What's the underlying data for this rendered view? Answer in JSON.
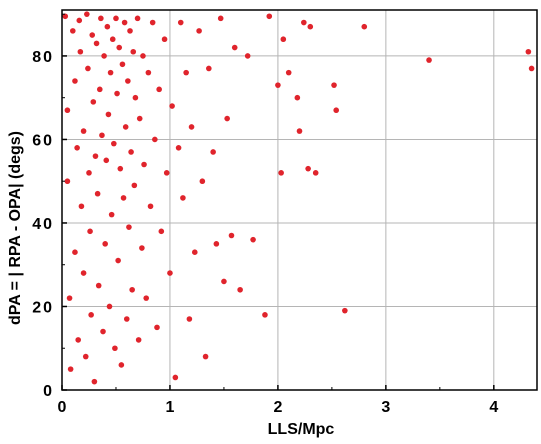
{
  "chart_data": {
    "type": "scatter",
    "title": "",
    "xlabel": "LLS/Mpc",
    "ylabel": "dPA = | RPA - OPA| (degs)",
    "xlim": [
      0,
      4.4
    ],
    "ylim": [
      0,
      91
    ],
    "xticks": [
      0,
      1,
      2,
      3,
      4
    ],
    "xtick_labels": [
      "0",
      "1",
      "2",
      "3",
      "4"
    ],
    "yticks": [
      0,
      20,
      40,
      60,
      80
    ],
    "ytick_labels": [
      "0",
      "20",
      "40",
      "60",
      "80"
    ],
    "grid": true,
    "legend": "none",
    "marker_color": "#e0242c",
    "series": [
      {
        "points": [
          [
            0.03,
            89.5
          ],
          [
            0.05,
            67
          ],
          [
            0.05,
            50
          ],
          [
            0.07,
            22
          ],
          [
            0.08,
            5
          ],
          [
            0.1,
            86
          ],
          [
            0.12,
            74
          ],
          [
            0.12,
            33
          ],
          [
            0.14,
            58
          ],
          [
            0.15,
            12
          ],
          [
            0.16,
            88.5
          ],
          [
            0.17,
            81
          ],
          [
            0.18,
            44
          ],
          [
            0.2,
            62
          ],
          [
            0.2,
            28
          ],
          [
            0.22,
            8
          ],
          [
            0.23,
            90
          ],
          [
            0.24,
            77
          ],
          [
            0.25,
            52
          ],
          [
            0.26,
            38
          ],
          [
            0.27,
            18
          ],
          [
            0.28,
            85
          ],
          [
            0.29,
            69
          ],
          [
            0.3,
            2
          ],
          [
            0.31,
            56
          ],
          [
            0.32,
            83
          ],
          [
            0.33,
            47
          ],
          [
            0.34,
            25
          ],
          [
            0.35,
            72
          ],
          [
            0.36,
            89
          ],
          [
            0.37,
            61
          ],
          [
            0.38,
            14
          ],
          [
            0.39,
            80
          ],
          [
            0.4,
            35
          ],
          [
            0.41,
            55
          ],
          [
            0.42,
            87
          ],
          [
            0.43,
            66
          ],
          [
            0.44,
            20
          ],
          [
            0.45,
            76
          ],
          [
            0.46,
            42
          ],
          [
            0.47,
            84
          ],
          [
            0.48,
            59
          ],
          [
            0.49,
            10
          ],
          [
            0.5,
            89
          ],
          [
            0.51,
            71
          ],
          [
            0.52,
            31
          ],
          [
            0.53,
            82
          ],
          [
            0.54,
            53
          ],
          [
            0.55,
            6
          ],
          [
            0.56,
            78
          ],
          [
            0.57,
            46
          ],
          [
            0.58,
            88
          ],
          [
            0.59,
            63
          ],
          [
            0.6,
            17
          ],
          [
            0.61,
            74
          ],
          [
            0.62,
            39
          ],
          [
            0.63,
            86
          ],
          [
            0.64,
            57
          ],
          [
            0.65,
            24
          ],
          [
            0.66,
            81
          ],
          [
            0.67,
            49
          ],
          [
            0.68,
            70
          ],
          [
            0.7,
            89
          ],
          [
            0.71,
            12
          ],
          [
            0.72,
            65
          ],
          [
            0.74,
            34
          ],
          [
            0.75,
            80
          ],
          [
            0.76,
            54
          ],
          [
            0.78,
            22
          ],
          [
            0.8,
            76
          ],
          [
            0.82,
            44
          ],
          [
            0.84,
            88
          ],
          [
            0.86,
            60
          ],
          [
            0.88,
            15
          ],
          [
            0.9,
            72
          ],
          [
            0.92,
            38
          ],
          [
            0.95,
            84
          ],
          [
            0.97,
            52
          ],
          [
            1.0,
            28
          ],
          [
            1.02,
            68
          ],
          [
            1.05,
            3
          ],
          [
            1.08,
            58
          ],
          [
            1.1,
            88
          ],
          [
            1.12,
            46
          ],
          [
            1.15,
            76
          ],
          [
            1.18,
            17
          ],
          [
            1.2,
            63
          ],
          [
            1.23,
            33
          ],
          [
            1.27,
            86
          ],
          [
            1.3,
            50
          ],
          [
            1.33,
            8
          ],
          [
            1.36,
            77
          ],
          [
            1.4,
            57
          ],
          [
            1.43,
            35
          ],
          [
            1.47,
            89
          ],
          [
            1.5,
            26
          ],
          [
            1.53,
            65
          ],
          [
            1.57,
            37
          ],
          [
            1.6,
            82
          ],
          [
            1.65,
            24
          ],
          [
            1.72,
            80
          ],
          [
            1.77,
            36
          ],
          [
            1.88,
            18
          ],
          [
            1.92,
            89.5
          ],
          [
            2.0,
            73
          ],
          [
            2.03,
            52
          ],
          [
            2.05,
            84
          ],
          [
            2.1,
            76
          ],
          [
            2.18,
            70
          ],
          [
            2.2,
            62
          ],
          [
            2.24,
            88
          ],
          [
            2.28,
            53
          ],
          [
            2.3,
            87
          ],
          [
            2.35,
            52
          ],
          [
            2.52,
            73
          ],
          [
            2.54,
            67
          ],
          [
            2.62,
            19
          ],
          [
            2.8,
            87
          ],
          [
            3.4,
            79
          ],
          [
            4.32,
            81
          ],
          [
            4.35,
            77
          ]
        ]
      }
    ]
  }
}
